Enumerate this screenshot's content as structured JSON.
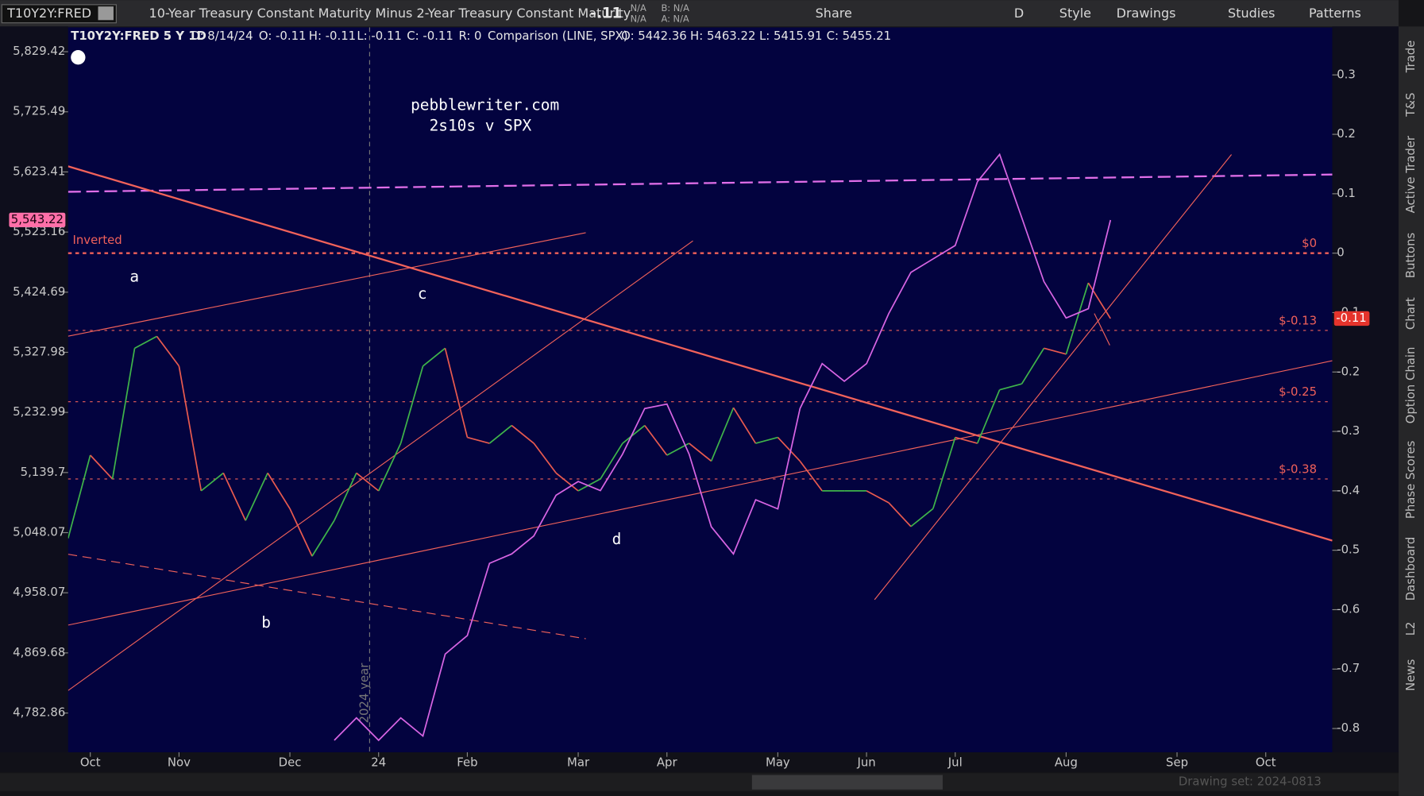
{
  "toolbar": {
    "symbol": "T10Y2Y:FRED",
    "description": "10-Year Treasury Constant Maturity Minus 2-Year Treasury Constant Maturity",
    "last": "-.11",
    "bid_size": "N/A",
    "ask_size": "N/A",
    "bid": "B: N/A",
    "ask": "A: N/A",
    "buttons": [
      "Share",
      "D",
      "Style",
      "Drawings",
      "Studies",
      "Patterns"
    ]
  },
  "info_bar": [
    "T10Y2Y:FRED 5 Y 1D",
    "D: 8/14/24",
    "O: -0.11",
    "H: -0.11",
    "L: -0.11",
    "C: -0.11",
    "R: 0"
  ],
  "comparison_info": [
    "Comparison (LINE, SPX)",
    "O: 5442.36",
    "H: 5463.22",
    "L: 5415.91",
    "C: 5455.21"
  ],
  "side_tabs": [
    "Trade",
    "T&S",
    "Active Trader",
    "Buttons",
    "Chart",
    "Option Chain",
    "Phase Scores",
    "Dashboard",
    "L2",
    "News"
  ],
  "status": "Drawing set: 2024-0813",
  "chart_data": {
    "type": "line",
    "watermark": [
      "pebblewriter.com",
      "2s10s v SPX"
    ],
    "wave_labels": [
      "a",
      "b",
      "c",
      "d"
    ],
    "inverted_label": "Inverted",
    "year_marker": "2024 year",
    "categories": [
      null,
      "Oct",
      null,
      null,
      null,
      "Nov",
      null,
      null,
      null,
      null,
      "Dec",
      null,
      null,
      null,
      "24",
      null,
      null,
      null,
      "Feb",
      null,
      null,
      null,
      null,
      "Mar",
      null,
      null,
      null,
      "Apr",
      null,
      null,
      null,
      null,
      "May",
      null,
      null,
      null,
      "Jun",
      null,
      null,
      null,
      "Jul",
      null,
      null,
      null,
      null,
      "Aug",
      null,
      null,
      null,
      null,
      "Sep",
      null,
      null,
      null,
      "Oct",
      null,
      null
    ],
    "series": [
      {
        "axis": "y2",
        "up_color": "#3fb44a",
        "down_color": "#e85a4f",
        "values": [
          -0.48,
          -0.34,
          -0.38,
          -0.16,
          -0.14,
          -0.19,
          -0.4,
          -0.37,
          -0.45,
          -0.37,
          -0.43,
          -0.51,
          -0.45,
          -0.37,
          -0.4,
          -0.32,
          -0.19,
          -0.16,
          -0.31,
          -0.32,
          -0.29,
          -0.32,
          -0.37,
          -0.4,
          -0.38,
          -0.32,
          -0.29,
          -0.34,
          -0.32,
          -0.35,
          -0.26,
          -0.32,
          -0.31,
          -0.35,
          -0.4,
          -0.4,
          -0.4,
          -0.42,
          -0.46,
          -0.43,
          -0.31,
          -0.32,
          -0.23,
          -0.22,
          -0.16,
          -0.17,
          -0.05,
          -0.11,
          null,
          null,
          null,
          null,
          null,
          null,
          null,
          null,
          null
        ]
      },
      {
        "color": "#d865e4",
        "values": [
          null,
          null,
          null,
          null,
          null,
          null,
          null,
          null,
          null,
          null,
          null,
          null,
          4744,
          4776,
          4744,
          4776,
          4750,
          4868,
          4895,
          5002,
          5016,
          5043,
          5105,
          5126,
          5112,
          5168,
          5239,
          5246,
          5168,
          5057,
          5016,
          5098,
          5084,
          5239,
          5310,
          5282,
          5310,
          5390,
          5457,
          5479,
          5501,
          5607,
          5653,
          5547,
          5442,
          5383,
          5398,
          5543,
          null,
          null,
          null,
          null,
          null,
          null,
          null,
          null,
          null
        ]
      }
    ],
    "ylim": [
      4727,
      5872
    ],
    "log": true,
    "yticks": [
      {
        "value": 5829.42,
        "label": "5,829.42"
      },
      {
        "value": 5725.49,
        "label": "5,725.49"
      },
      {
        "value": 5623.41,
        "label": "5,623.41"
      },
      {
        "value": 5523.16,
        "label": "5,523.16"
      },
      {
        "value": 5424.69,
        "label": "5,424.69"
      },
      {
        "value": 5327.98,
        "label": "5,327.98"
      },
      {
        "value": 5232.99,
        "label": "5,232.99"
      },
      {
        "value": 5139.7,
        "label": "5,139.7"
      },
      {
        "value": 5048.07,
        "label": "5,048.07"
      },
      {
        "value": 4958.07,
        "label": "4,958.07"
      },
      {
        "value": 4869.68,
        "label": "4,869.68"
      },
      {
        "value": 4782.86,
        "label": "4,782.86"
      }
    ],
    "y2lim": [
      -0.84,
      0.38
    ],
    "y2ticks": [
      0.3,
      0.2,
      0.1,
      0,
      -0.1,
      -0.2,
      -0.3,
      -0.4,
      -0.5,
      -0.6,
      -0.7,
      -0.8
    ],
    "levels": [
      {
        "value": 0,
        "label": "$0"
      },
      {
        "value": -0.13,
        "label": "$-0.13"
      },
      {
        "value": -0.25,
        "label": "$-0.25"
      },
      {
        "value": -0.38,
        "label": "$-0.38"
      }
    ],
    "level_color": "#f0605a",
    "last_flags": [
      {
        "axis": "y",
        "value": 5543.22,
        "label": "5,543.22",
        "color": "#ff6fa8"
      },
      {
        "axis": "y2",
        "value": -0.11,
        "label": "-0.11",
        "color": "#e5342c"
      }
    ]
  }
}
